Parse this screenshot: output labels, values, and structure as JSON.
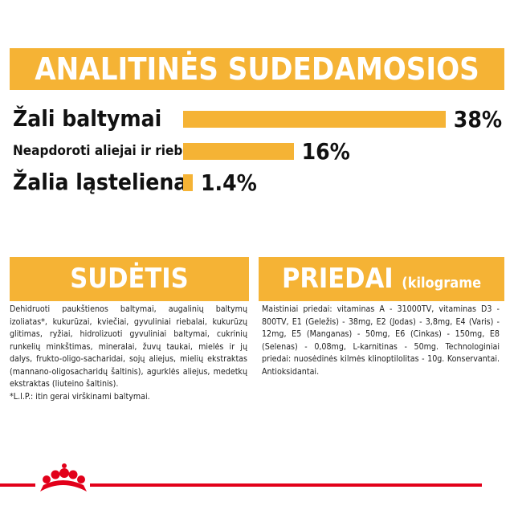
{
  "chart_data": {
    "type": "bar",
    "title": "ANALITINĖS SUDEDAMOSIOS DALYS",
    "categories": [
      "Žali baltymai",
      "Neapdoroti aliejai ir riebalai",
      "Žalia ląsteliena"
    ],
    "values": [
      38,
      16,
      1.4
    ],
    "value_labels": [
      "38%",
      "16%",
      "1.4%"
    ],
    "color": "#f5b335"
  },
  "composition": {
    "title": "SUDĖTIS",
    "text": "Dehidruoti paukštienos baltymai, augalinių baltymų izoliatas*, kukurūzai, kviečiai, gyvuliniai riebalai, kukurūzų glitimas, ryžiai, hidrolizuoti gyvuliniai baltymai, cukrinių runkelių minkštimas, mineralai, žuvų taukai, mielės ir jų dalys, frukto-oligo-sacharidai, sojų aliejus, mielių ekstraktas (mannano-oligosacharidų šaltinis), agurklės aliejus, medetkų ekstraktas (liuteino šaltinis).",
    "note": "*L.I.P.: itin gerai virškinami baltymai."
  },
  "additives": {
    "title": "PRIEDAI",
    "subtitle": "(kilograme ėdalo)",
    "text": "Maistiniai priedai: vitaminas A - 31000TV, vitaminas D3 - 800TV, E1 (Geležis) - 38mg, E2 (Jodas) - 3,8mg, E4 (Varis) - 12mg, E5 (Manganas) - 50mg, E6 (Cinkas) - 150mg, E8 (Selenas) - 0,08mg, L-karnitinas - 50mg. Technologiniai priedai: nuosėdinės kilmės klinoptilolitas - 10g. Konservantai. Antioksidantai."
  }
}
